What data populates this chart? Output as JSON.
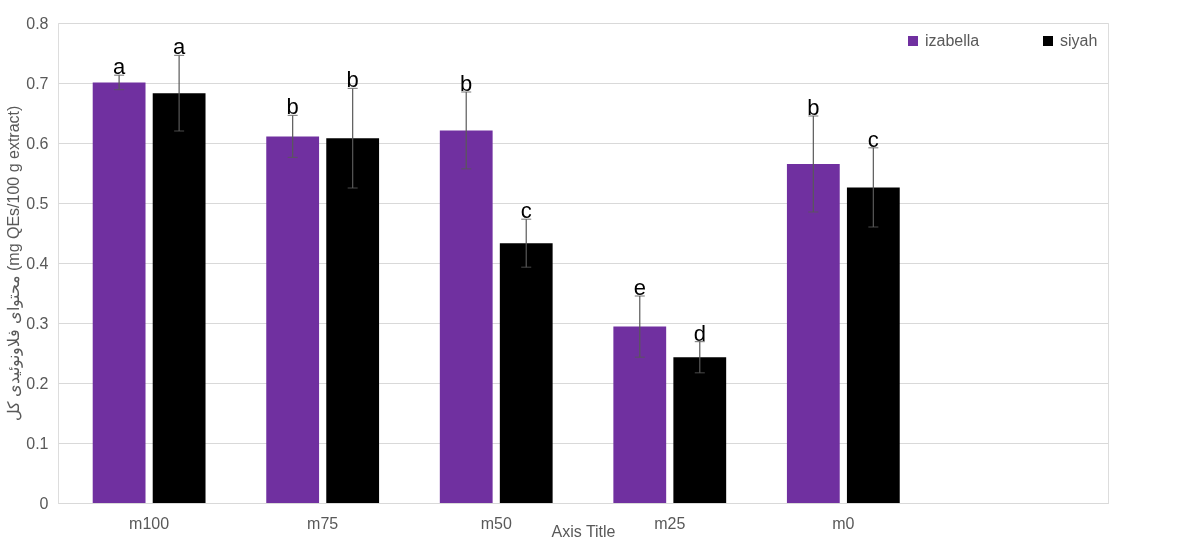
{
  "chart_data": {
    "type": "bar",
    "ylabel": "محتوای فلاونوئیدی کل (mg QEs/100 g extract)",
    "xlabel": "Axis Title",
    "categories": [
      "m100",
      "m75",
      "m50",
      "m25",
      "m0",
      null
    ],
    "series": [
      {
        "name": "izabella",
        "color": "#7030a0",
        "values": [
          0.701,
          0.611,
          0.621,
          0.294,
          0.565,
          null
        ],
        "errors": [
          0.012,
          0.035,
          0.064,
          0.051,
          0.08,
          null
        ],
        "value_labels": [
          "a",
          "b",
          "b",
          "e",
          "b",
          null
        ]
      },
      {
        "name": "siyah",
        "color": "#000000",
        "values": [
          0.683,
          0.608,
          0.433,
          0.243,
          0.526,
          null
        ],
        "errors": [
          0.063,
          0.083,
          0.04,
          0.026,
          0.066,
          null
        ],
        "value_labels": [
          "a",
          "b",
          "c",
          "d",
          "c",
          null
        ]
      }
    ],
    "ylim": [
      0,
      0.8
    ],
    "yticks": [
      0,
      0.1,
      0.2,
      0.3,
      0.4,
      0.5,
      0.6,
      0.7,
      0.8
    ],
    "grid": "y",
    "legend": "top right"
  }
}
